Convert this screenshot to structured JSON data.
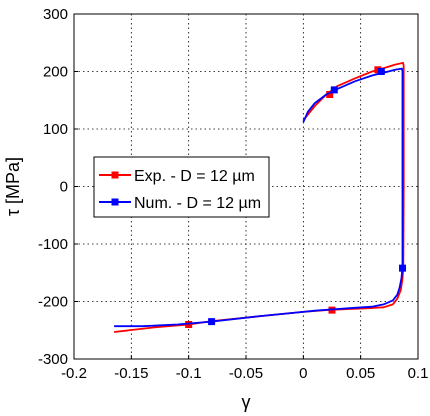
{
  "chart_data": {
    "type": "line",
    "title": "",
    "xlabel": "γ",
    "ylabel": "τ [MPa]",
    "xlim": [
      -0.2,
      0.1
    ],
    "ylim": [
      -300,
      300
    ],
    "xticks": [
      -0.2,
      -0.15,
      -0.1,
      -0.05,
      0,
      0.05,
      0.1
    ],
    "xtick_labels": [
      "-0.2",
      "-0.15",
      "-0.1",
      "-0.05",
      "0",
      "0.05",
      "0.1"
    ],
    "yticks": [
      -300,
      -200,
      -100,
      0,
      100,
      200,
      300
    ],
    "ytick_labels": [
      "-300",
      "-200",
      "-100",
      "0",
      "100",
      "200",
      "300"
    ],
    "grid": true,
    "legend_position": "center-left",
    "series": [
      {
        "name": "Exp. - D = 12 µm",
        "color": "#ff0000",
        "marker": "square",
        "x": [
          0,
          0.004,
          0.01,
          0.02,
          0.03,
          0.045,
          0.06,
          0.072,
          0.08,
          0.087,
          0.0875,
          0.0875,
          0.0872,
          0.0865,
          0.085,
          0.082,
          0.078,
          0.07,
          0.055,
          0.04,
          0.02,
          0,
          -0.02,
          -0.05,
          -0.08,
          -0.1,
          -0.13,
          -0.165
        ],
        "y": [
          115,
          125,
          140,
          160,
          175,
          188,
          200,
          207,
          212,
          215,
          210,
          0,
          -142,
          -160,
          -180,
          -195,
          -205,
          -210,
          -212,
          -213,
          -215,
          -218,
          -222,
          -228,
          -234,
          -240,
          -245,
          -253
        ],
        "markers": [
          [
            0.023,
            160
          ],
          [
            0.065,
            203
          ],
          [
            0.025,
            -215
          ],
          [
            -0.1,
            -240
          ]
        ]
      },
      {
        "name": "Num. - D = 12 µm",
        "color": "#0000ff",
        "marker": "square",
        "x": [
          0,
          0.004,
          0.01,
          0.02,
          0.03,
          0.045,
          0.06,
          0.072,
          0.08,
          0.086,
          0.0865,
          0.0865,
          0.0865,
          0.0855,
          0.084,
          0.082,
          0.078,
          0.07,
          0.06,
          0.045,
          0.03,
          0.01,
          -0.01,
          -0.04,
          -0.08,
          -0.11,
          -0.14,
          -0.165
        ],
        "y": [
          112,
          130,
          145,
          160,
          170,
          183,
          193,
          199,
          203,
          205,
          200,
          0,
          -142,
          -160,
          -175,
          -188,
          -198,
          -205,
          -209,
          -211,
          -213,
          -216,
          -220,
          -226,
          -235,
          -240,
          -243,
          -243
        ],
        "markers": [
          [
            0.027,
            168
          ],
          [
            0.068,
            200
          ],
          [
            0.0865,
            -142
          ],
          [
            -0.08,
            -235
          ]
        ]
      }
    ]
  }
}
